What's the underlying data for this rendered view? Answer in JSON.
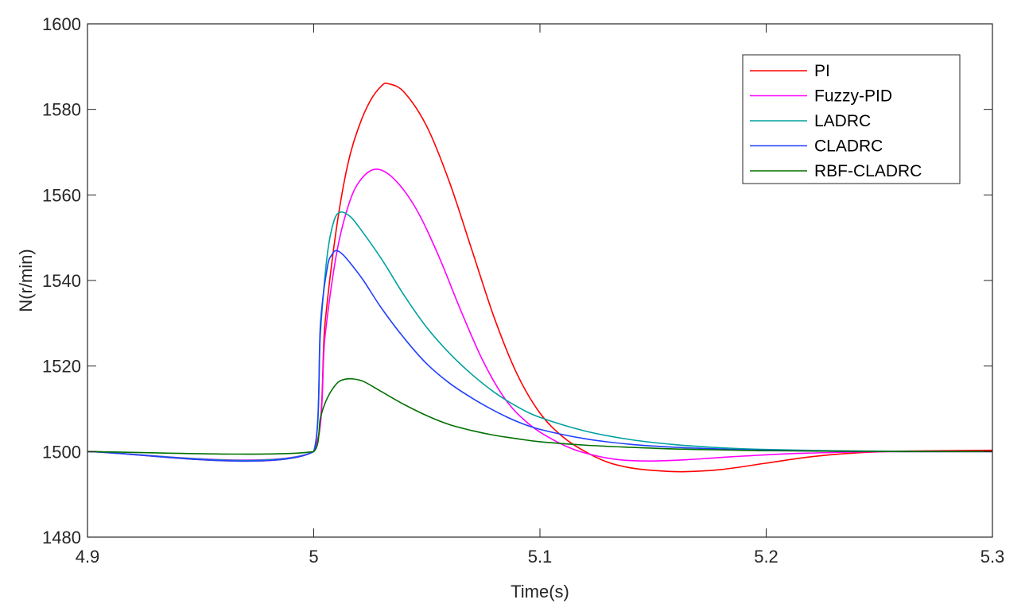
{
  "chart_data": {
    "type": "line",
    "title": "",
    "xlabel": "Time(s)",
    "ylabel": "N(r/min)",
    "xlim": [
      4.9,
      5.3
    ],
    "ylim": [
      1480,
      1600
    ],
    "xticks": [
      4.9,
      5.0,
      5.1,
      5.2,
      5.3
    ],
    "xtick_labels": [
      "4.9",
      "5",
      "5.1",
      "5.2",
      "5.3"
    ],
    "yticks": [
      1480,
      1500,
      1520,
      1540,
      1560,
      1580,
      1600
    ],
    "ytick_labels": [
      "1480",
      "1500",
      "1520",
      "1540",
      "1560",
      "1580",
      "1600"
    ],
    "grid": false,
    "legend_position": "top-right",
    "series": [
      {
        "name": "PI",
        "color": "#ff0000",
        "x": [
          4.9,
          5.0,
          5.005,
          5.01,
          5.015,
          5.02,
          5.025,
          5.03,
          5.033,
          5.04,
          5.05,
          5.06,
          5.07,
          5.08,
          5.09,
          5.1,
          5.11,
          5.12,
          5.13,
          5.14,
          5.15,
          5.163,
          5.18,
          5.2,
          5.22,
          5.24,
          5.26,
          5.3
        ],
        "y": [
          1500,
          1500,
          1530,
          1552,
          1567,
          1576,
          1582,
          1585.5,
          1586,
          1584,
          1576,
          1563,
          1547,
          1531,
          1518,
          1509,
          1503.5,
          1500,
          1497.5,
          1496.2,
          1495.6,
          1495.3,
          1495.8,
          1497.3,
          1498.8,
          1499.7,
          1500.1,
          1500.3
        ]
      },
      {
        "name": "Fuzzy-PID",
        "color": "#ff00ff",
        "x": [
          4.9,
          5.0,
          5.005,
          5.01,
          5.015,
          5.02,
          5.027,
          5.035,
          5.045,
          5.055,
          5.065,
          5.075,
          5.085,
          5.095,
          5.105,
          5.115,
          5.125,
          5.135,
          5.148,
          5.165,
          5.185,
          5.21,
          5.24,
          5.26,
          5.3
        ],
        "y": [
          1500,
          1500,
          1527,
          1546,
          1557,
          1563,
          1566,
          1564,
          1557,
          1546,
          1533,
          1521,
          1512,
          1506.5,
          1503,
          1500.5,
          1499,
          1498.1,
          1497.8,
          1498.1,
          1498.8,
          1499.5,
          1499.9,
          1500,
          1500
        ]
      },
      {
        "name": "LADRC",
        "color": "#00a0a0",
        "x": [
          4.9,
          5.0,
          5.003,
          5.006,
          5.009,
          5.012,
          5.016,
          5.02,
          5.03,
          5.04,
          5.05,
          5.06,
          5.07,
          5.08,
          5.09,
          5.1,
          5.12,
          5.14,
          5.16,
          5.18,
          5.2,
          5.23,
          5.26,
          5.3
        ],
        "y": [
          1500,
          1500,
          1528,
          1546,
          1554,
          1556,
          1555,
          1552.5,
          1545,
          1536.5,
          1529,
          1523,
          1518,
          1513.8,
          1510.5,
          1508,
          1504.8,
          1502.8,
          1501.6,
          1500.9,
          1500.5,
          1500.2,
          1500.05,
          1500
        ]
      },
      {
        "name": "CLADRC",
        "color": "#2040ff",
        "x": [
          4.9,
          5.0,
          5.003,
          5.006,
          5.008,
          5.01,
          5.013,
          5.017,
          5.022,
          5.03,
          5.04,
          5.05,
          5.06,
          5.07,
          5.08,
          5.09,
          5.1,
          5.12,
          5.14,
          5.16,
          5.18,
          5.2,
          5.23,
          5.26,
          5.3
        ],
        "y": [
          1500,
          1500,
          1530,
          1543,
          1546,
          1547,
          1546,
          1543.5,
          1540,
          1533.5,
          1526.5,
          1520.5,
          1516,
          1512.5,
          1509.5,
          1507,
          1505.2,
          1503,
          1501.7,
          1501,
          1500.6,
          1500.3,
          1500.1,
          1500,
          1500
        ]
      },
      {
        "name": "RBF-CLADRC",
        "color": "#007000",
        "x": [
          4.9,
          5.0,
          5.003,
          5.006,
          5.01,
          5.013,
          5.017,
          5.022,
          5.03,
          5.04,
          5.05,
          5.06,
          5.07,
          5.08,
          5.09,
          5.1,
          5.12,
          5.14,
          5.16,
          5.18,
          5.2,
          5.23,
          5.26,
          5.3
        ],
        "y": [
          1500,
          1500,
          1508,
          1512.5,
          1515.8,
          1516.8,
          1517,
          1516.4,
          1514,
          1511,
          1508.4,
          1506.3,
          1504.9,
          1503.8,
          1503,
          1502.3,
          1501.5,
          1501,
          1500.6,
          1500.4,
          1500.2,
          1500.1,
          1500,
          1500
        ]
      }
    ]
  }
}
